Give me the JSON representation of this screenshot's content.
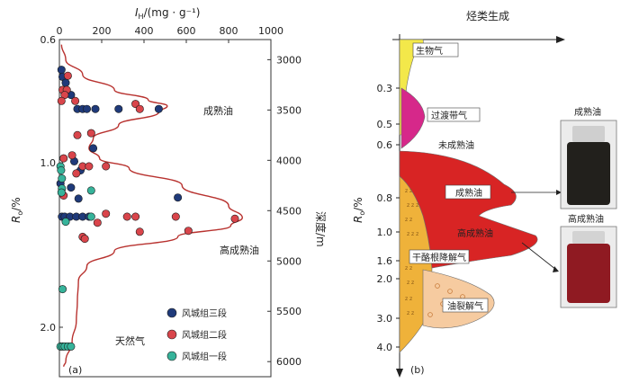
{
  "chart_data": [
    {
      "type": "scatter",
      "panel_label": "(a)",
      "top_axis": {
        "label_main": "I",
        "label_sub": "H",
        "label_unit": "/(mg · g⁻¹)",
        "ticks": [
          0,
          200,
          400,
          600,
          800,
          1000
        ],
        "range": [
          0,
          1000
        ]
      },
      "left_axis": {
        "label_main": "R",
        "label_sub": "o",
        "label_unit": "/%",
        "ticks": [
          "0.6",
          "1.0",
          "2.0"
        ]
      },
      "right_axis": {
        "label": "深度/m",
        "ticks": [
          3000,
          3500,
          4000,
          4500,
          5000,
          5500,
          6000
        ],
        "range": [
          2800,
          6150
        ]
      },
      "annotations": [
        "成熟油",
        "高成熟油",
        "天然气"
      ],
      "envelope_depth_ih": [
        [
          2850,
          10
        ],
        [
          3000,
          30
        ],
        [
          3150,
          110
        ],
        [
          3300,
          260
        ],
        [
          3400,
          420
        ],
        [
          3460,
          510
        ],
        [
          3520,
          470
        ],
        [
          3650,
          280
        ],
        [
          3780,
          160
        ],
        [
          3880,
          140
        ],
        [
          3980,
          190
        ],
        [
          4080,
          330
        ],
        [
          4250,
          580
        ],
        [
          4450,
          800
        ],
        [
          4570,
          865
        ],
        [
          4650,
          810
        ],
        [
          4760,
          560
        ],
        [
          4900,
          260
        ],
        [
          5050,
          130
        ],
        [
          5200,
          90
        ],
        [
          5400,
          85
        ],
        [
          5600,
          80
        ],
        [
          5800,
          60
        ],
        [
          6000,
          30
        ],
        [
          6050,
          20
        ]
      ],
      "legend": [
        {
          "label": "风城组三段",
          "color": "#1f3a7a"
        },
        {
          "label": "风城组二段",
          "color": "#d9454b"
        },
        {
          "label": "风城组一段",
          "color": "#36b39a"
        }
      ],
      "series": [
        {
          "name": "风城组三段",
          "color": "#1f3a7a",
          "points": [
            [
              10,
              3100
            ],
            [
              15,
              3170
            ],
            [
              30,
              3230
            ],
            [
              55,
              3350
            ],
            [
              85,
              3490
            ],
            [
              110,
              3490
            ],
            [
              130,
              3490
            ],
            [
              170,
              3490
            ],
            [
              280,
              3490
            ],
            [
              470,
              3490
            ],
            [
              160,
              3880
            ],
            [
              70,
              4010
            ],
            [
              100,
              4100
            ],
            [
              5,
              4230
            ],
            [
              55,
              4270
            ],
            [
              90,
              4380
            ],
            [
              12,
              4560
            ],
            [
              25,
              4560
            ],
            [
              50,
              4560
            ],
            [
              80,
              4560
            ],
            [
              110,
              4560
            ],
            [
              140,
              4560
            ],
            [
              560,
              4370
            ]
          ]
        },
        {
          "name": "风城组二段",
          "color": "#d9454b",
          "points": [
            [
              40,
              3160
            ],
            [
              15,
              3300
            ],
            [
              35,
              3300
            ],
            [
              25,
              3350
            ],
            [
              10,
              3410
            ],
            [
              75,
              3410
            ],
            [
              360,
              3440
            ],
            [
              380,
              3490
            ],
            [
              85,
              3750
            ],
            [
              150,
              3730
            ],
            [
              60,
              3950
            ],
            [
              20,
              3980
            ],
            [
              110,
              4060
            ],
            [
              140,
              4060
            ],
            [
              220,
              4060
            ],
            [
              80,
              4130
            ],
            [
              20,
              4350
            ],
            [
              220,
              4530
            ],
            [
              320,
              4560
            ],
            [
              360,
              4560
            ],
            [
              550,
              4560
            ],
            [
              830,
              4580
            ],
            [
              180,
              4620
            ],
            [
              610,
              4700
            ],
            [
              380,
              4710
            ],
            [
              110,
              4760
            ],
            [
              120,
              4780
            ]
          ]
        },
        {
          "name": "风城组一段",
          "color": "#36b39a",
          "points": [
            [
              5,
              4060
            ],
            [
              8,
              4100
            ],
            [
              12,
              4180
            ],
            [
              150,
              4300
            ],
            [
              12,
              4280
            ],
            [
              10,
              4320
            ],
            [
              30,
              4610
            ],
            [
              150,
              4560
            ],
            [
              15,
              5280
            ],
            [
              5,
              5850
            ],
            [
              15,
              5850
            ],
            [
              25,
              5850
            ],
            [
              40,
              5850
            ],
            [
              55,
              5850
            ]
          ]
        }
      ]
    },
    {
      "type": "area",
      "panel_label": "(b)",
      "title": "烃类生成",
      "y_axis": {
        "label_main": "R",
        "label_sub": "o",
        "label_unit": "/%",
        "ticks": [
          "0.3",
          "0.5",
          "0.6",
          "0.8",
          "1.0",
          "1.6",
          "2.0",
          "3.0",
          "4.0"
        ]
      },
      "zones": [
        "生物气",
        "过渡带气",
        "未成熟油",
        "成熟油",
        "高成熟油",
        "干酪根降解气",
        "油裂解气"
      ],
      "zone_colors": {
        "生物气": "#f3e84a",
        "过渡带气": "#d6288a",
        "油": "#d82424",
        "干酪根降解气": "#efb23a",
        "油裂解气": "#f6cba0"
      },
      "photos": [
        {
          "label": "成熟油",
          "liquid_color": "#22201c"
        },
        {
          "label": "高成熟油",
          "liquid_color": "#8f1a22"
        }
      ]
    }
  ]
}
